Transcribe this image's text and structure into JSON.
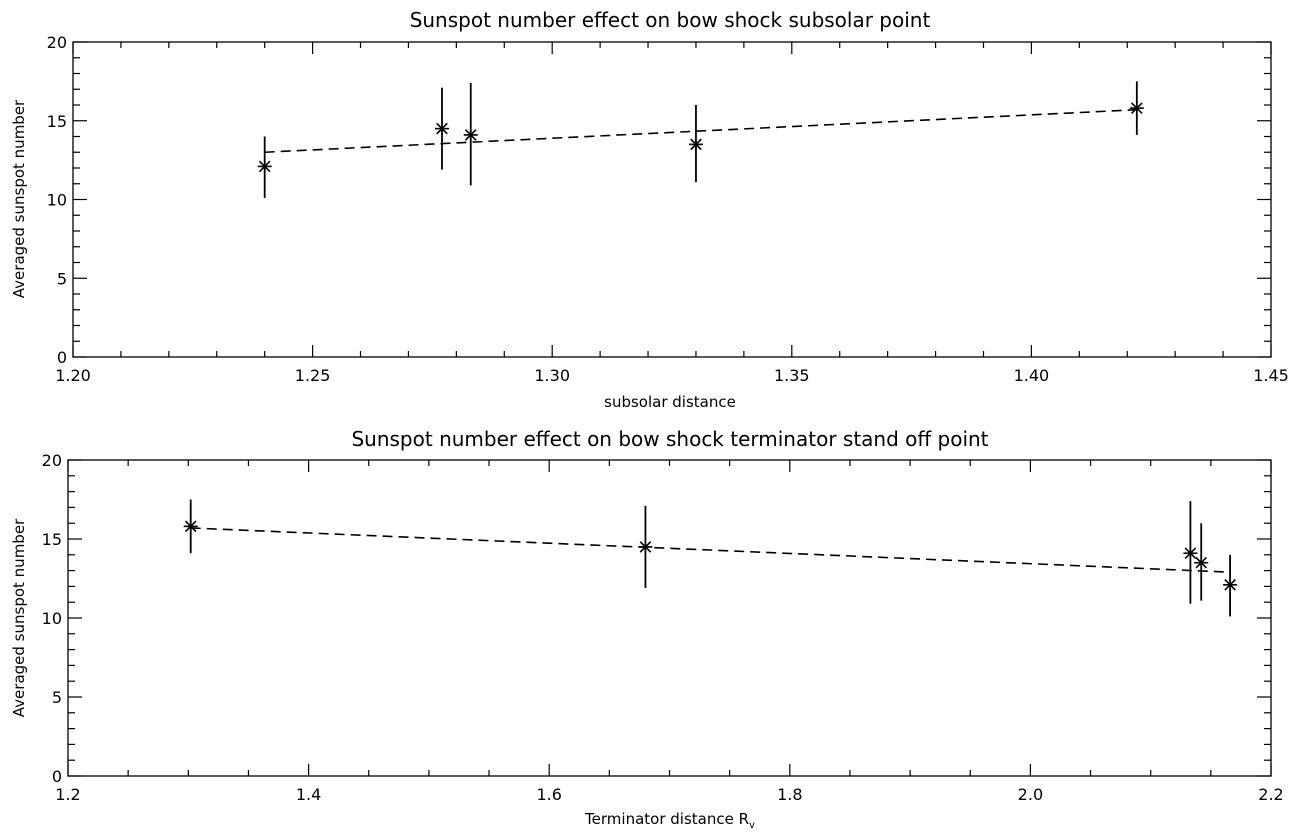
{
  "chart_data": [
    {
      "type": "scatter",
      "title": "Sunspot number effect on bow shock subsolar point",
      "xlabel": "subsolar distance",
      "xlabel_sub": "",
      "ylabel": "Averaged sunspot number",
      "xlim": [
        1.2,
        1.45
      ],
      "ylim": [
        0,
        20
      ],
      "xticks": [
        1.2,
        1.25,
        1.3,
        1.35,
        1.4,
        1.45
      ],
      "xtick_labels": [
        "1.20",
        "1.25",
        "1.30",
        "1.35",
        "1.40",
        "1.45"
      ],
      "x_minor": 0.01,
      "yticks": [
        0,
        5,
        10,
        15,
        20
      ],
      "ytick_labels": [
        "0",
        "5",
        "10",
        "15",
        "20"
      ],
      "y_minor": 1,
      "grid": false,
      "points": [
        {
          "x": 1.24,
          "y": 12.1,
          "ylow": 10.1,
          "yhigh": 14.0
        },
        {
          "x": 1.277,
          "y": 14.5,
          "ylow": 11.9,
          "yhigh": 17.1
        },
        {
          "x": 1.283,
          "y": 14.1,
          "ylow": 10.9,
          "yhigh": 17.4
        },
        {
          "x": 1.33,
          "y": 13.5,
          "ylow": 11.1,
          "yhigh": 16.0
        },
        {
          "x": 1.422,
          "y": 15.8,
          "ylow": 14.1,
          "yhigh": 17.5
        }
      ],
      "fit_line": {
        "x": [
          1.24,
          1.422
        ],
        "y": [
          13.0,
          15.7
        ]
      }
    },
    {
      "type": "scatter",
      "title": "Sunspot number effect on bow shock terminator stand off point",
      "xlabel": "Terminator distance R",
      "xlabel_sub": "v",
      "ylabel": "Averaged sunspot number",
      "xlim": [
        1.2,
        2.2
      ],
      "ylim": [
        0,
        20
      ],
      "xticks": [
        1.2,
        1.4,
        1.6,
        1.8,
        2.0,
        2.2
      ],
      "xtick_labels": [
        "1.2",
        "1.4",
        "1.6",
        "1.8",
        "2.0",
        "2.2"
      ],
      "x_minor": 0.05,
      "yticks": [
        0,
        5,
        10,
        15,
        20
      ],
      "ytick_labels": [
        "0",
        "5",
        "10",
        "15",
        "20"
      ],
      "y_minor": 1,
      "grid": false,
      "points": [
        {
          "x": 1.302,
          "y": 15.8,
          "ylow": 14.1,
          "yhigh": 17.5
        },
        {
          "x": 1.68,
          "y": 14.5,
          "ylow": 11.9,
          "yhigh": 17.1
        },
        {
          "x": 2.133,
          "y": 14.1,
          "ylow": 10.9,
          "yhigh": 17.4
        },
        {
          "x": 2.142,
          "y": 13.5,
          "ylow": 11.1,
          "yhigh": 16.0
        },
        {
          "x": 2.166,
          "y": 12.1,
          "ylow": 10.1,
          "yhigh": 14.0
        }
      ],
      "fit_line": {
        "x": [
          1.302,
          2.166
        ],
        "y": [
          15.7,
          12.9
        ]
      }
    }
  ]
}
